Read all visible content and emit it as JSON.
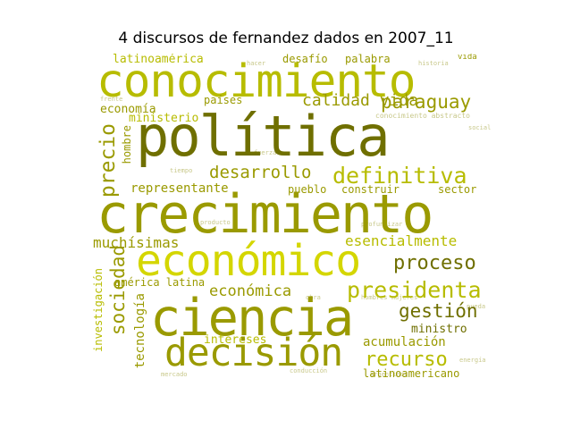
{
  "title": "4 discursos de fernandez dados en 2007_11",
  "colors": {
    "dark_olive": "#6f6f00",
    "olive": "#9a9a00",
    "yellow_green": "#b7bc00",
    "bright": "#d4d600",
    "pale": "#c8c88a",
    "background": "#ffffff"
  },
  "words": {
    "conocimiento": "conocimiento",
    "politica": "política",
    "crecimiento": "crecimiento",
    "economico": "económico",
    "ciencia": "ciencia",
    "decision": "decisión",
    "definitiva": "definitiva",
    "paraguay": "paraguay",
    "desarrollo": "desarrollo",
    "precio": "precio",
    "proceso": "proceso",
    "presidenta": "presidenta",
    "gestion": "gestión",
    "recurso": "recurso",
    "sociedad": "sociedad",
    "esencialmente": "esencialmente",
    "muchisimas": "muchísimas",
    "economica": "económica",
    "calidad_vida": "calidad vida",
    "latinoamerica": "latinoamérica",
    "economia": "economía",
    "ministerio": "ministerio",
    "paises": "países",
    "representante": "representante",
    "pueblo": "pueblo",
    "construir": "construir",
    "sector": "sector",
    "hombre": "hombre",
    "tecnologia": "tecnología",
    "investigacion": "investigación",
    "america_latina": "américa latina",
    "intereses": "intereses",
    "ministro": "ministro",
    "acumulacion": "acumulación",
    "latinoamericano": "latinoamericano",
    "desafio": "desafío",
    "palabra": "palabra",
    "vida": "vida",
    "conocimiento_abstracto": "conocimiento abstracto"
  }
}
